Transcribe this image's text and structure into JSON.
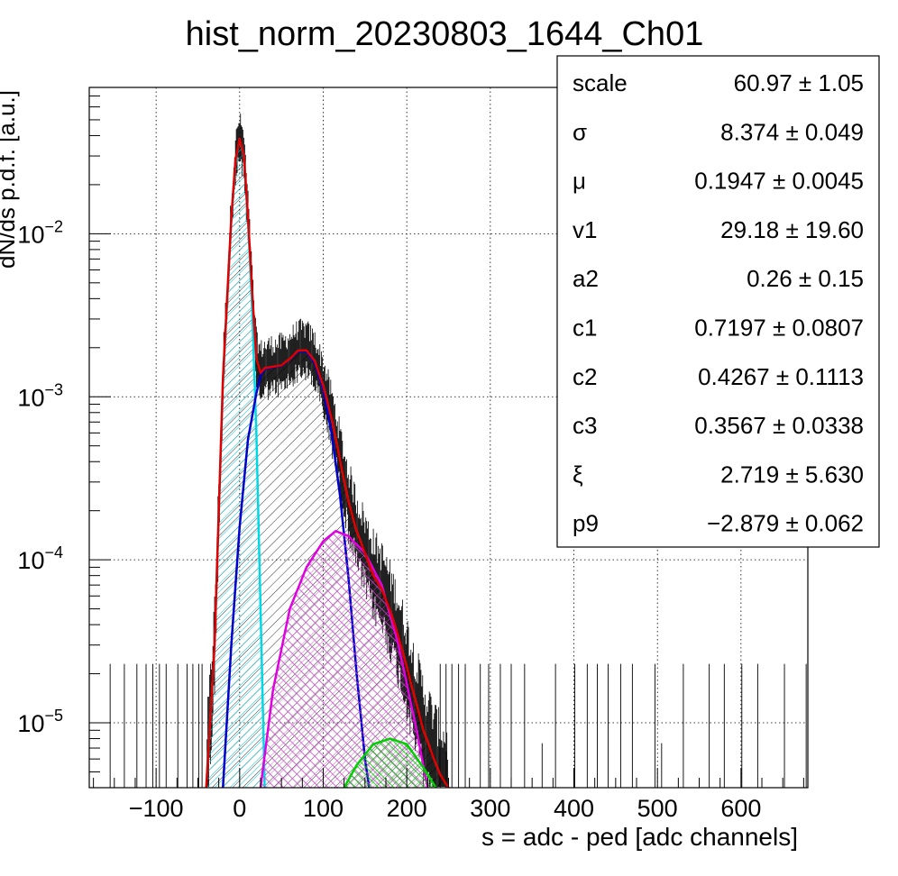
{
  "chart_data": {
    "type": "line",
    "title": "hist_norm_20230803_1644_Ch01",
    "xlabel": "s = adc - ped [adc channels]",
    "ylabel": "dN/ds p.d.f. [a.u.]",
    "xlim": [
      -180,
      680
    ],
    "ylim": [
      4e-06,
      0.08
    ],
    "yscale": "log",
    "grid": true,
    "x_ticks": [
      -100,
      0,
      100,
      200,
      300,
      400,
      500,
      600
    ],
    "x_tick_labels": [
      "−100",
      "0",
      "100",
      "200",
      "300",
      "400",
      "500",
      "600"
    ],
    "y_ticks": [
      {
        "value": 0.01,
        "base": "10",
        "exp": "−2"
      },
      {
        "value": 0.001,
        "base": "10",
        "exp": "−3"
      },
      {
        "value": 0.0001,
        "base": "10",
        "exp": "−4"
      },
      {
        "value": 1e-05,
        "base": "10",
        "exp": "−5"
      }
    ],
    "legend": "top-right",
    "stats": [
      {
        "label": "scale",
        "value": "60.97 ± 1.05"
      },
      {
        "label": "σ",
        "value": "8.374 ± 0.049"
      },
      {
        "label": "μ",
        "value": "0.1947 ± 0.0045"
      },
      {
        "label": "v1",
        "value": "29.18 ± 19.60"
      },
      {
        "label": "a2",
        "value": "0.26 ± 0.15"
      },
      {
        "label": "c1",
        "value": "0.7197 ± 0.0807"
      },
      {
        "label": "c2",
        "value": "0.4267 ± 0.1113"
      },
      {
        "label": "c3",
        "value": "0.3567 ± 0.0338"
      },
      {
        "label": "ξ",
        "value": "2.719 ± 5.630"
      },
      {
        "label": "p9",
        "value": "−2.879 ± 0.062"
      }
    ],
    "series": [
      {
        "color": "#00d8e8",
        "x": [
          -40,
          -30,
          -20,
          -10,
          -5,
          0,
          5,
          10,
          15,
          20,
          25,
          30
        ],
        "y": [
          4e-06,
          3e-05,
          0.0012,
          0.012,
          0.028,
          0.038,
          0.03,
          0.012,
          0.0034,
          0.0006,
          5e-05,
          4e-06
        ]
      },
      {
        "color": "#0000cc",
        "x": [
          -20,
          -10,
          0,
          10,
          20,
          25,
          30,
          40,
          50,
          60,
          70,
          80,
          90,
          100,
          110,
          120,
          130,
          140,
          150,
          155
        ],
        "y": [
          4e-06,
          3e-05,
          0.00016,
          0.00055,
          0.00105,
          0.00135,
          0.00148,
          0.00152,
          0.00155,
          0.0017,
          0.0019,
          0.0019,
          0.0016,
          0.0011,
          0.0006,
          0.00025,
          8e-05,
          2e-05,
          6e-06,
          4e-06
        ]
      },
      {
        "color": "#e000e0",
        "x": [
          25,
          40,
          60,
          80,
          100,
          115,
          130,
          150,
          170,
          190,
          210,
          225
        ],
        "y": [
          4e-06,
          1.6e-05,
          5e-05,
          9e-05,
          0.00013,
          0.00015,
          0.00014,
          0.00011,
          7e-05,
          3e-05,
          1e-05,
          4e-06
        ]
      },
      {
        "color": "#00d000",
        "x": [
          125,
          140,
          160,
          180,
          200,
          220,
          235
        ],
        "y": [
          4e-06,
          5.5e-06,
          7.4e-06,
          8e-06,
          7.4e-06,
          5.3e-06,
          4e-06
        ]
      },
      {
        "color": "#e00000",
        "x": [
          -40,
          -30,
          -20,
          -10,
          -5,
          0,
          5,
          10,
          15,
          20,
          25,
          30,
          40,
          50,
          60,
          70,
          80,
          90,
          100,
          110,
          120,
          130,
          140,
          150,
          160,
          170,
          180,
          190,
          200,
          210,
          220,
          230,
          240,
          250
        ],
        "y": [
          4e-06,
          3e-05,
          0.0013,
          0.0125,
          0.0285,
          0.0383,
          0.0303,
          0.0126,
          0.0044,
          0.0017,
          0.0014,
          0.0015,
          0.00153,
          0.00156,
          0.00171,
          0.00192,
          0.00193,
          0.00165,
          0.00117,
          0.00074,
          0.00041,
          0.00023,
          0.00015,
          0.00011,
          8e-05,
          6.6e-05,
          4.9e-05,
          3.4e-05,
          2.2e-05,
          1.4e-05,
          9e-06,
          6.5e-06,
          4.8e-06,
          4e-06
        ]
      }
    ]
  }
}
